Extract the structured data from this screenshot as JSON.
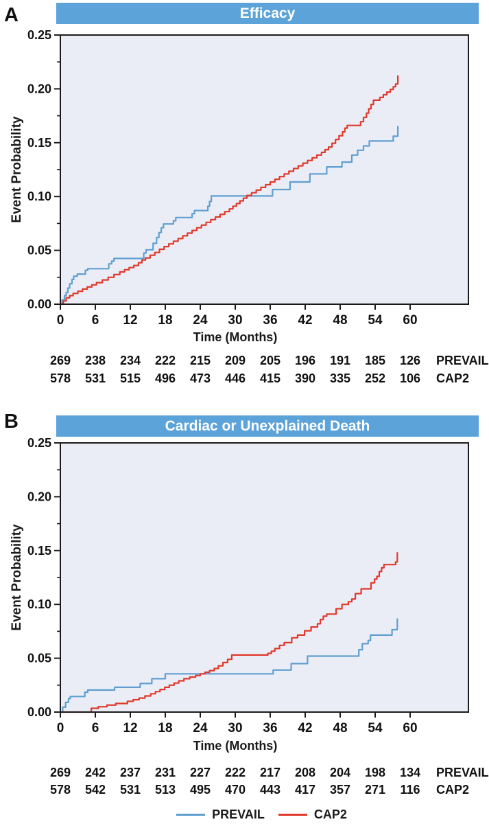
{
  "figure": {
    "panel_letters": [
      "A",
      "B"
    ]
  },
  "colors": {
    "header_bg": "#5CA3DA",
    "header_text": "#FFFFFF",
    "plot_bg": "#EAEDF6",
    "axis": "#1A1A1A",
    "text": "#1A1A1A",
    "prevail": "#5F9FD0",
    "cap2": "#E0392B"
  },
  "legend": {
    "items": [
      {
        "label": "PREVAIL",
        "color": "#5F9FD0"
      },
      {
        "label": "CAP2",
        "color": "#E0392B"
      }
    ]
  },
  "chart_data": [
    {
      "type": "line",
      "subtype": "kaplan_meier_step",
      "panel_label": "A",
      "title": "Efficacy",
      "xlabel": "Time (Months)",
      "ylabel": "Event Probability",
      "xlim": [
        0,
        70
      ],
      "ylim": [
        0,
        0.25
      ],
      "xticks": [
        0,
        6,
        12,
        18,
        24,
        30,
        36,
        42,
        48,
        54,
        60
      ],
      "ytick_labels": [
        "0.00",
        "0.05",
        "0.10",
        "0.15",
        "0.20",
        "0.25"
      ],
      "y_minor_step": 0.025,
      "grid": false,
      "legend_position": "bottom-shared",
      "series": [
        {
          "name": "PREVAIL",
          "color": "#5F9FD0",
          "points": [
            [
              0,
              0
            ],
            [
              0.3,
              0.004
            ],
            [
              0.7,
              0.008
            ],
            [
              1,
              0.011
            ],
            [
              1.3,
              0.015
            ],
            [
              1.6,
              0.019
            ],
            [
              2,
              0.023
            ],
            [
              2.3,
              0.026
            ],
            [
              2.9,
              0.028
            ],
            [
              4.3,
              0.0315
            ],
            [
              4.7,
              0.033
            ],
            [
              8.3,
              0.0375
            ],
            [
              8.8,
              0.04
            ],
            [
              9.2,
              0.0425
            ],
            [
              14.3,
              0.0475
            ],
            [
              14.7,
              0.0505
            ],
            [
              15.9,
              0.0565
            ],
            [
              16.5,
              0.062
            ],
            [
              16.9,
              0.0665
            ],
            [
              17.3,
              0.071
            ],
            [
              17.7,
              0.0745
            ],
            [
              19.4,
              0.0775
            ],
            [
              19.8,
              0.0805
            ],
            [
              22.6,
              0.084
            ],
            [
              23,
              0.087
            ],
            [
              25.3,
              0.091
            ],
            [
              25.6,
              0.0955
            ],
            [
              25.9,
              0.1005
            ],
            [
              36.4,
              0.1065
            ],
            [
              39.4,
              0.1135
            ],
            [
              42.8,
              0.121
            ],
            [
              45.7,
              0.1275
            ],
            [
              48.3,
              0.132
            ],
            [
              50,
              0.1385
            ],
            [
              51,
              0.143
            ],
            [
              52,
              0.147
            ],
            [
              53,
              0.1515
            ],
            [
              57.1,
              0.156
            ],
            [
              57.9,
              0.1655
            ]
          ]
        },
        {
          "name": "CAP2",
          "color": "#E0392B",
          "points": [
            [
              0,
              0
            ],
            [
              0.5,
              0.003
            ],
            [
              1,
              0.006
            ],
            [
              1.6,
              0.008
            ],
            [
              2.2,
              0.01
            ],
            [
              3,
              0.012
            ],
            [
              3.8,
              0.014
            ],
            [
              4.6,
              0.016
            ],
            [
              5.4,
              0.018
            ],
            [
              6.2,
              0.02
            ],
            [
              7.2,
              0.0225
            ],
            [
              8.2,
              0.025
            ],
            [
              9.2,
              0.0275
            ],
            [
              10.2,
              0.03
            ],
            [
              11,
              0.032
            ],
            [
              11.8,
              0.034
            ],
            [
              12.6,
              0.036
            ],
            [
              13.4,
              0.0385
            ],
            [
              14,
              0.041
            ],
            [
              14.6,
              0.043
            ],
            [
              15.4,
              0.0455
            ],
            [
              16.2,
              0.048
            ],
            [
              17,
              0.051
            ],
            [
              17.8,
              0.0535
            ],
            [
              18.6,
              0.056
            ],
            [
              19.4,
              0.0585
            ],
            [
              20.2,
              0.061
            ],
            [
              21,
              0.0635
            ],
            [
              21.8,
              0.066
            ],
            [
              22.6,
              0.0685
            ],
            [
              23.4,
              0.071
            ],
            [
              24.2,
              0.0735
            ],
            [
              25,
              0.076
            ],
            [
              25.8,
              0.0785
            ],
            [
              26.6,
              0.081
            ],
            [
              27.4,
              0.0835
            ],
            [
              28.2,
              0.086
            ],
            [
              29,
              0.0885
            ],
            [
              29.6,
              0.091
            ],
            [
              30.2,
              0.0935
            ],
            [
              30.8,
              0.096
            ],
            [
              31.4,
              0.0985
            ],
            [
              32,
              0.101
            ],
            [
              32.8,
              0.1035
            ],
            [
              33.6,
              0.106
            ],
            [
              34.4,
              0.1085
            ],
            [
              35.2,
              0.111
            ],
            [
              36,
              0.1135
            ],
            [
              36.8,
              0.116
            ],
            [
              37.6,
              0.1185
            ],
            [
              38.4,
              0.121
            ],
            [
              39.2,
              0.1235
            ],
            [
              40,
              0.126
            ],
            [
              40.8,
              0.1285
            ],
            [
              41.6,
              0.131
            ],
            [
              42.4,
              0.1335
            ],
            [
              43.2,
              0.136
            ],
            [
              44,
              0.1385
            ],
            [
              44.8,
              0.141
            ],
            [
              45.4,
              0.1435
            ],
            [
              46,
              0.146
            ],
            [
              46.6,
              0.1495
            ],
            [
              47.2,
              0.153
            ],
            [
              47.8,
              0.1565
            ],
            [
              48.4,
              0.16
            ],
            [
              48.8,
              0.1635
            ],
            [
              49.2,
              0.166
            ],
            [
              51.5,
              0.1695
            ],
            [
              52,
              0.1735
            ],
            [
              52.5,
              0.1775
            ],
            [
              52.9,
              0.1815
            ],
            [
              53.3,
              0.1855
            ],
            [
              53.7,
              0.1895
            ],
            [
              54.8,
              0.192
            ],
            [
              55.4,
              0.1945
            ],
            [
              56,
              0.197
            ],
            [
              56.6,
              0.1995
            ],
            [
              57.1,
              0.202
            ],
            [
              57.5,
              0.2045
            ],
            [
              57.9,
              0.2125
            ]
          ]
        }
      ],
      "at_risk_rows": [
        {
          "group": "PREVAIL",
          "counts": [
            269,
            238,
            234,
            222,
            215,
            209,
            205,
            196,
            191,
            185,
            126
          ]
        },
        {
          "group": "CAP2",
          "counts": [
            578,
            531,
            515,
            496,
            473,
            446,
            415,
            390,
            335,
            252,
            106
          ]
        }
      ]
    },
    {
      "type": "line",
      "subtype": "kaplan_meier_step",
      "panel_label": "B",
      "title": "Cardiac or Unexplained Death",
      "xlabel": "Time (Months)",
      "ylabel": "Event Probability",
      "xlim": [
        0,
        70
      ],
      "ylim": [
        0,
        0.25
      ],
      "xticks": [
        0,
        6,
        12,
        18,
        24,
        30,
        36,
        42,
        48,
        54,
        60
      ],
      "ytick_labels": [
        "0.00",
        "0.05",
        "0.10",
        "0.15",
        "0.20",
        "0.25"
      ],
      "y_minor_step": 0.025,
      "grid": false,
      "legend_position": "bottom-shared",
      "series": [
        {
          "name": "PREVAIL",
          "color": "#5F9FD0",
          "points": [
            [
              0,
              0
            ],
            [
              0.4,
              0.0045
            ],
            [
              0.9,
              0.009
            ],
            [
              1.4,
              0.0125
            ],
            [
              1.7,
              0.0145
            ],
            [
              4.2,
              0.0185
            ],
            [
              4.7,
              0.0205
            ],
            [
              9.3,
              0.023
            ],
            [
              13.7,
              0.0265
            ],
            [
              15.7,
              0.031
            ],
            [
              18,
              0.0355
            ],
            [
              36.5,
              0.039
            ],
            [
              39.6,
              0.045
            ],
            [
              42.4,
              0.052
            ],
            [
              51.2,
              0.058
            ],
            [
              51.8,
              0.0635
            ],
            [
              52.8,
              0.0665
            ],
            [
              53.2,
              0.0715
            ],
            [
              56.9,
              0.0765
            ],
            [
              57.8,
              0.087
            ]
          ]
        },
        {
          "name": "CAP2",
          "color": "#E0392B",
          "points": [
            [
              0,
              0
            ],
            [
              5.3,
              0.0035
            ],
            [
              6.5,
              0.005
            ],
            [
              8,
              0.0065
            ],
            [
              9.5,
              0.008
            ],
            [
              11.5,
              0.01
            ],
            [
              12.5,
              0.0115
            ],
            [
              13.5,
              0.013
            ],
            [
              14.5,
              0.015
            ],
            [
              15.5,
              0.017
            ],
            [
              16.3,
              0.019
            ],
            [
              17.1,
              0.021
            ],
            [
              17.9,
              0.023
            ],
            [
              18.7,
              0.025
            ],
            [
              19.5,
              0.027
            ],
            [
              20.3,
              0.029
            ],
            [
              21.2,
              0.031
            ],
            [
              22.2,
              0.0325
            ],
            [
              23.2,
              0.034
            ],
            [
              24,
              0.0355
            ],
            [
              24.8,
              0.037
            ],
            [
              25.6,
              0.0385
            ],
            [
              26.4,
              0.0405
            ],
            [
              27.1,
              0.043
            ],
            [
              27.9,
              0.046
            ],
            [
              28.7,
              0.049
            ],
            [
              29.4,
              0.053
            ],
            [
              35.6,
              0.0545
            ],
            [
              36.2,
              0.0565
            ],
            [
              36.8,
              0.059
            ],
            [
              37.6,
              0.062
            ],
            [
              38.4,
              0.0645
            ],
            [
              39.7,
              0.069
            ],
            [
              40.7,
              0.0715
            ],
            [
              41.9,
              0.0755
            ],
            [
              43,
              0.079
            ],
            [
              44.1,
              0.082
            ],
            [
              44.6,
              0.086
            ],
            [
              45.1,
              0.089
            ],
            [
              45.7,
              0.091
            ],
            [
              47.3,
              0.096
            ],
            [
              48.3,
              0.1
            ],
            [
              49.4,
              0.1025
            ],
            [
              50,
              0.105
            ],
            [
              50.6,
              0.11
            ],
            [
              51.6,
              0.1145
            ],
            [
              53.3,
              0.12
            ],
            [
              53.9,
              0.1235
            ],
            [
              54.3,
              0.126
            ],
            [
              54.7,
              0.1305
            ],
            [
              55.1,
              0.134
            ],
            [
              55.5,
              0.137
            ],
            [
              57.5,
              0.1395
            ],
            [
              57.8,
              0.1485
            ]
          ]
        }
      ],
      "at_risk_rows": [
        {
          "group": "PREVAIL",
          "counts": [
            269,
            242,
            237,
            231,
            227,
            222,
            217,
            208,
            204,
            198,
            134
          ]
        },
        {
          "group": "CAP2",
          "counts": [
            578,
            542,
            531,
            513,
            495,
            470,
            443,
            417,
            357,
            271,
            116
          ]
        }
      ]
    }
  ]
}
